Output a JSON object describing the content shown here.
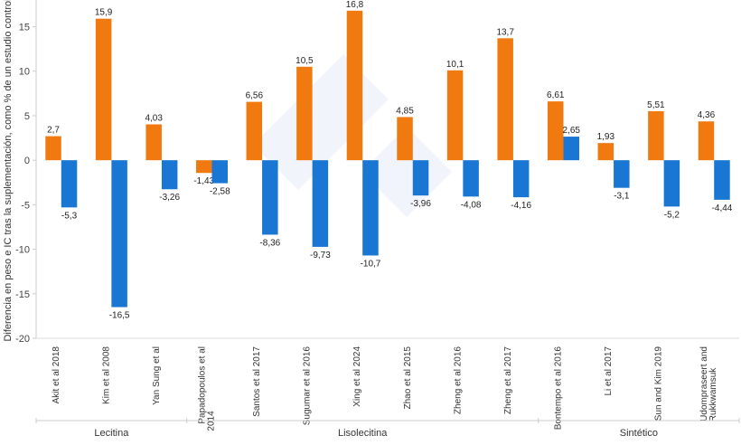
{
  "chart_data": {
    "type": "bar",
    "ylabel": "Diferencia en peso e IC tras la suplementación, como % de un estudio control",
    "xlabel": "",
    "ylim": [
      -20,
      18
    ],
    "yticks": [
      "-20",
      "-15",
      "-10",
      "-5",
      "0",
      "5",
      "10",
      "15"
    ],
    "grid": false,
    "categories": [
      "Akit et al 2018",
      "Kim et al 2008",
      "Yan Sung et al",
      "Papadopoulos et al 2014",
      "Santos et al 2017",
      "Sugumar et al 2016",
      "Xing et al 2024",
      "Zhao et al 2015",
      "Zheng et al 2016",
      "Zheng et al 2017",
      "Bontempo et al 2016",
      "Li et al 2017",
      "Sun and Kim 2019",
      "Udompraseert and Rukkwamsuk"
    ],
    "series": [
      {
        "color": "#F07A10",
        "values": [
          2.7,
          15.9,
          4.03,
          -1.43,
          6.56,
          10.5,
          16.8,
          4.85,
          10.1,
          13.7,
          6.61,
          1.93,
          5.51,
          4.36
        ],
        "labels": [
          "2,7",
          "15,9",
          "4,03",
          "-1,43",
          "6,56",
          "10,5",
          "16,8",
          "4,85",
          "10,1",
          "13,7",
          "6,61",
          "1,93",
          "5,51",
          "4,36"
        ]
      },
      {
        "color": "#1976D2",
        "values": [
          -5.3,
          -16.5,
          -3.26,
          -2.58,
          -8.36,
          -9.73,
          -10.7,
          -3.96,
          -4.08,
          -4.16,
          2.65,
          -3.1,
          -5.2,
          -4.44
        ],
        "labels": [
          "-5,3",
          "-16,5",
          "-3,26",
          "-2,58",
          "-8,36",
          "-9,73",
          "-10,7",
          "-3,96",
          "-4,08",
          "-4,16",
          "2,65",
          "-3,1",
          "-5,2",
          "-4,44"
        ]
      }
    ],
    "groups": [
      {
        "label": "Lecitina",
        "count": 3
      },
      {
        "label": "Lisolecitina",
        "count": 7
      },
      {
        "label": "Sintético",
        "count": 4
      }
    ]
  }
}
